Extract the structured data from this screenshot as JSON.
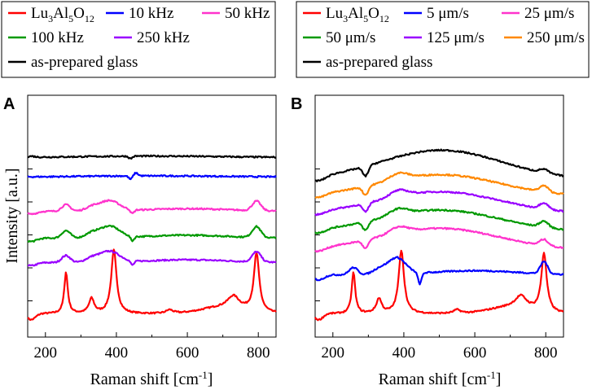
{
  "chart_data": [
    {
      "type": "line",
      "panel": "A",
      "xlabel": "Raman shift [cm",
      "xlabel_sup": "-1",
      "xlabel_end": "]",
      "ylabel": "Intensity [a.u.]",
      "xlim": [
        150,
        850
      ],
      "xticks": [
        "200",
        "400",
        "600",
        "800"
      ],
      "legend": {
        "rows": [
          [
            {
              "key": "lu",
              "name": "Lu",
              "sub1": "3",
              "mid": "Al",
              "sub2": "5",
              "mid2": "O",
              "sub3": "12"
            },
            {
              "key": "f10",
              "name": "10 kHz"
            },
            {
              "key": "f50",
              "name": "50 kHz"
            }
          ],
          [
            {
              "key": "f100",
              "name": "100 kHz"
            },
            {
              "key": "f250",
              "name": "250 kHz"
            }
          ],
          [
            {
              "key": "glass",
              "name": "as-prepared glass"
            }
          ]
        ]
      },
      "series": [
        {
          "key": "lu",
          "color": "#ff0000",
          "shape": "crystal",
          "offset": 0.95,
          "scale": 1.0
        },
        {
          "key": "f250",
          "color": "#9900ff",
          "shape": "mixed",
          "offset": 3.05,
          "scale": 0.32
        },
        {
          "key": "f100",
          "color": "#009900",
          "shape": "mixed",
          "offset": 4.05,
          "scale": 0.34
        },
        {
          "key": "f50",
          "color": "#ff33cc",
          "shape": "mixed",
          "offset": 5.15,
          "scale": 0.3
        },
        {
          "key": "f10",
          "color": "#0000ff",
          "shape": "glass_dip",
          "offset": 6.55,
          "scale": 0.1
        },
        {
          "key": "glass",
          "color": "#000000",
          "shape": "glass_flat",
          "offset": 7.35,
          "scale": 0.1
        }
      ]
    },
    {
      "type": "line",
      "panel": "B",
      "xlabel": "Raman shift [cm",
      "xlabel_sup": "-1",
      "xlabel_end": "]",
      "ylabel": "",
      "xlim": [
        150,
        850
      ],
      "xticks": [
        "200",
        "400",
        "600",
        "800"
      ],
      "legend": {
        "rows": [
          [
            {
              "key": "lu",
              "name": "Lu",
              "sub1": "3",
              "mid": "Al",
              "sub2": "5",
              "mid2": "O",
              "sub3": "12"
            },
            {
              "key": "v5",
              "name": "5 μm/s"
            },
            {
              "key": "v25",
              "name": "25 μm/s"
            }
          ],
          [
            {
              "key": "v50",
              "name": "50 μm/s"
            },
            {
              "key": "v125",
              "name": "125 μm/s"
            },
            {
              "key": "v250",
              "name": "250 μm/s"
            }
          ],
          [
            {
              "key": "glass",
              "name": "as-prepared glass"
            }
          ]
        ]
      },
      "series": [
        {
          "key": "lu",
          "color": "#ff0000",
          "shape": "crystal",
          "offset": 0.95,
          "scale": 1.0
        },
        {
          "key": "v5",
          "color": "#0000ff",
          "shape": "mixed_small",
          "offset": 2.55,
          "scale": 0.42
        },
        {
          "key": "v25",
          "color": "#ff33cc",
          "shape": "broad",
          "offset": 3.55,
          "scale": 1.0
        },
        {
          "key": "v50",
          "color": "#009900",
          "shape": "broad",
          "offset": 4.3,
          "scale": 1.0
        },
        {
          "key": "v125",
          "color": "#9900ff",
          "shape": "broad",
          "offset": 5.05,
          "scale": 1.0
        },
        {
          "key": "v250",
          "color": "#ff8800",
          "shape": "broad",
          "offset": 5.75,
          "scale": 1.0
        },
        {
          "key": "glass",
          "color": "#000000",
          "shape": "broad_big",
          "offset": 6.45,
          "scale": 1.0
        }
      ]
    }
  ],
  "colors": {
    "lu": "#ff0000",
    "f10": "#0000ff",
    "f50": "#ff33cc",
    "f100": "#009900",
    "f250": "#9900ff",
    "v5": "#0000ff",
    "v25": "#ff33cc",
    "v50": "#009900",
    "v125": "#9900ff",
    "v250": "#ff8800",
    "glass": "#000000"
  }
}
